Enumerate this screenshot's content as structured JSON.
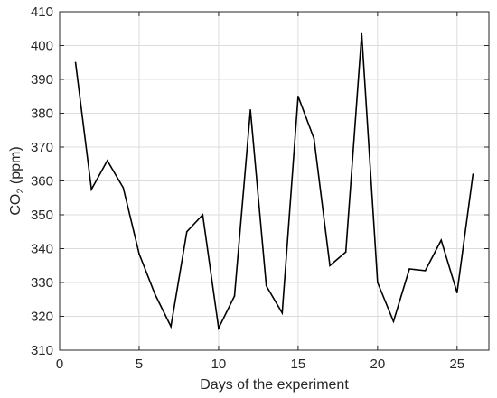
{
  "chart_data": {
    "type": "line",
    "xlabel": "Days of the experiment",
    "ylabel_main": "CO",
    "ylabel_sub": "2",
    "ylabel_unit": " (ppm)",
    "xlim": [
      0,
      27
    ],
    "ylim": [
      310,
      410
    ],
    "xticks": [
      0,
      5,
      10,
      15,
      20,
      25
    ],
    "yticks": [
      310,
      320,
      330,
      340,
      350,
      360,
      370,
      380,
      390,
      400,
      410
    ],
    "grid": true,
    "line_color": "#000000",
    "x": [
      1,
      2,
      3,
      4,
      5,
      6,
      7,
      8,
      9,
      10,
      11,
      12,
      13,
      14,
      15,
      16,
      17,
      18,
      19,
      20,
      21,
      22,
      23,
      24,
      25,
      26
    ],
    "y": [
      395,
      357.5,
      366,
      358,
      338.5,
      326.5,
      317,
      345,
      350,
      316.5,
      326,
      381,
      329,
      321,
      385,
      372.5,
      335,
      339,
      403.5,
      330,
      318.5,
      334,
      333.5,
      342.5,
      327,
      362
    ]
  }
}
